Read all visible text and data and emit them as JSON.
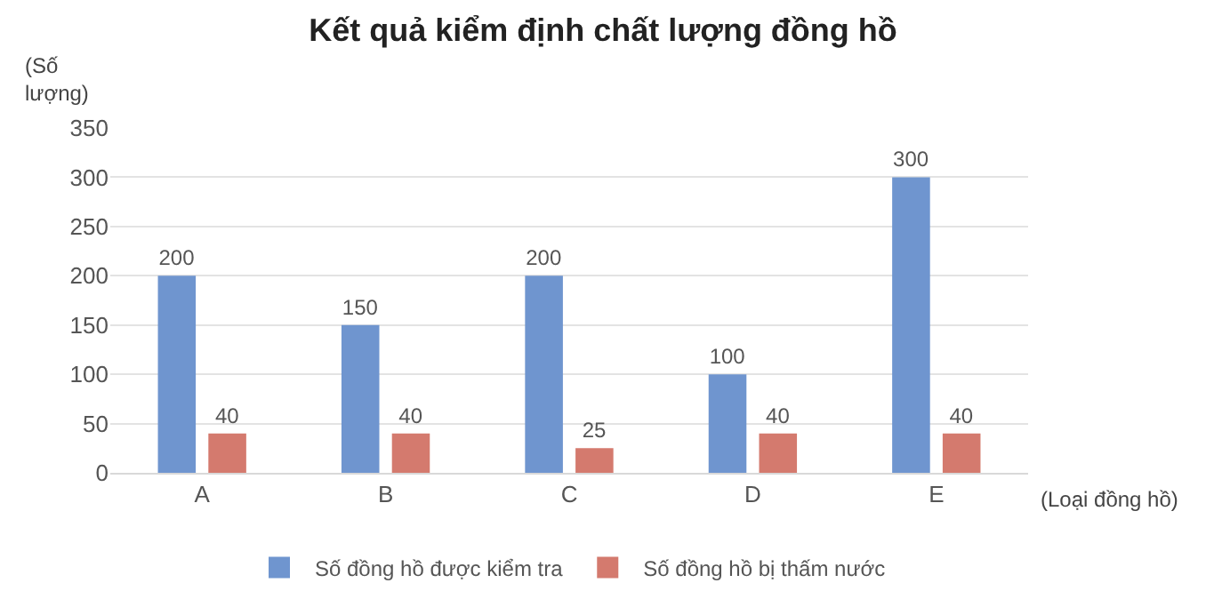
{
  "chart_data": {
    "type": "bar",
    "title": "Kết quả kiểm định chất lượng đồng hồ",
    "xlabel": "(Loại đồng hồ)",
    "ylabel": "(Số lượng)",
    "categories": [
      "A",
      "B",
      "C",
      "D",
      "E"
    ],
    "series": [
      {
        "name": "Số đồng hồ được kiểm tra",
        "color": "#6f95cf",
        "values": [
          200,
          150,
          200,
          100,
          300
        ]
      },
      {
        "name": "Số đồng hồ bị thấm nước",
        "color": "#d47a6e",
        "values": [
          40,
          40,
          25,
          40,
          40
        ]
      }
    ],
    "ylim": [
      0,
      350
    ],
    "yticks": [
      0,
      50,
      100,
      150,
      200,
      250,
      300,
      350
    ],
    "grid": "y",
    "legend": "bottom",
    "data_labels": true
  }
}
